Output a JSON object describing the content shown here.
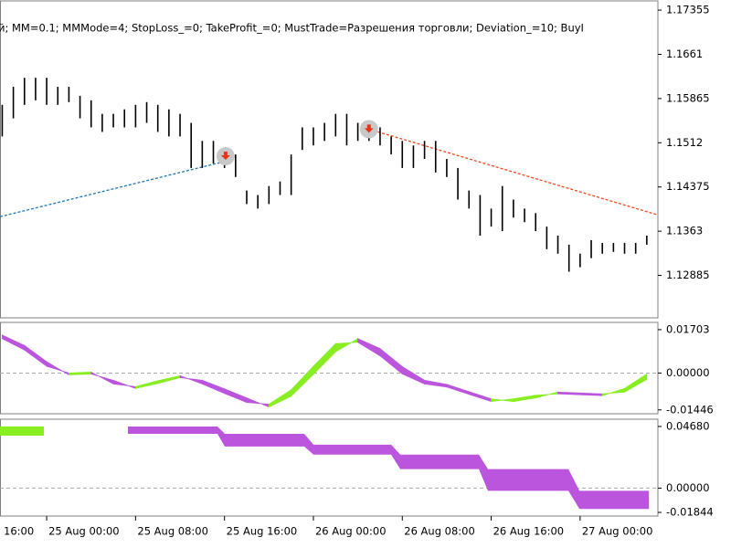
{
  "chart_data": [
    {
      "type": "ohlc",
      "title": "й; MM=0.1; MMMode=4; StopLoss_=0; TakeProfit_=0; MustTrade=Разрешения торговли; Deviation_=10; BuyI",
      "xlim": [
        3.8,
        63
      ],
      "ylim": [
        1.1217,
        1.1751
      ],
      "yticks": [
        1.17355,
        1.1661,
        1.15865,
        1.1512,
        1.14375,
        1.1363,
        1.12885
      ],
      "bar_color": "#000000",
      "x": [
        4,
        5,
        6,
        7,
        8,
        9,
        10,
        11,
        12,
        13,
        14,
        15,
        16,
        17,
        18,
        19,
        20,
        21,
        22,
        23,
        24,
        25,
        26,
        27,
        28,
        29,
        30,
        31,
        32,
        33,
        34,
        35,
        36,
        37,
        38,
        39,
        40,
        41,
        42,
        43,
        44,
        45,
        46,
        47,
        48,
        49,
        50,
        51,
        52,
        53,
        54,
        55,
        56,
        57,
        58,
        59,
        60,
        61,
        62
      ],
      "high": [
        1.15759,
        1.16063,
        1.16215,
        1.16215,
        1.16215,
        1.16063,
        1.16063,
        1.15911,
        1.15835,
        1.15607,
        1.15607,
        1.15683,
        1.15759,
        1.15805,
        1.15759,
        1.15683,
        1.15607,
        1.15455,
        1.15151,
        1.15151,
        1.14999,
        1.14923,
        1.14315,
        1.14239,
        1.14391,
        1.14467,
        1.14923,
        1.15379,
        1.15379,
        1.15455,
        1.15607,
        1.15607,
        1.15455,
        1.15379,
        1.15379,
        1.15227,
        1.15151,
        1.15075,
        1.15151,
        1.15151,
        1.14847,
        1.14695,
        1.14315,
        1.14239,
        1.14011,
        1.14391,
        1.14163,
        1.14011,
        1.13935,
        1.13707,
        1.13555,
        1.13403,
        1.13251,
        1.13479,
        1.13433,
        1.13433,
        1.13433,
        1.13433,
        1.13555
      ],
      "low": [
        1.15227,
        1.15531,
        1.15759,
        1.15835,
        1.15759,
        1.15759,
        1.15805,
        1.15531,
        1.15379,
        1.15303,
        1.15379,
        1.15379,
        1.15379,
        1.15455,
        1.15303,
        1.15227,
        1.15227,
        1.14695,
        1.14695,
        1.14771,
        1.14695,
        1.14543,
        1.14087,
        1.14011,
        1.14087,
        1.14239,
        1.14239,
        1.14999,
        1.15075,
        1.15151,
        1.15227,
        1.15075,
        1.15151,
        1.15151,
        1.15075,
        1.14923,
        1.14695,
        1.14695,
        1.14847,
        1.14619,
        1.14543,
        1.14163,
        1.14011,
        1.13555,
        1.13707,
        1.13631,
        1.13859,
        1.13783,
        1.13631,
        1.13327,
        1.13251,
        1.12947,
        1.13023,
        1.13175,
        1.13251,
        1.13281,
        1.13251,
        1.13251,
        1.13403
      ],
      "lines": [
        {
          "color": "#1f77b4",
          "x": [
            3.8,
            23.9
          ],
          "y": [
            1.13874,
            1.14799
          ]
        },
        {
          "color": "#e8471c",
          "x": [
            37,
            63
          ],
          "y": [
            1.15349,
            1.13904
          ]
        }
      ],
      "signals": {
        "color": "#e8331c",
        "x": [
          24.1,
          37
        ],
        "y": [
          1.14893,
          1.15349
        ]
      }
    },
    {
      "type": "oscillator",
      "xlim": [
        3.8,
        63
      ],
      "ylim": [
        -0.01597,
        0.01987
      ],
      "yticks": [
        0.01703,
        {
          "value": 0,
          "label": "0.00000"
        },
        -0.01446
      ],
      "up_color": "#88ee22",
      "down_color": "#bb55dd",
      "x": [
        4,
        6,
        8,
        10,
        12,
        14,
        16,
        18,
        20,
        22,
        24,
        26,
        28,
        30,
        32,
        34,
        36,
        38,
        40,
        42,
        44,
        46,
        48,
        50,
        52,
        54,
        56,
        58,
        60,
        62
      ],
      "main": [
        0.01349,
        0.00905,
        0.00266,
        0,
        0.00036,
        -0.00426,
        -0.00533,
        -0.00302,
        -0.00107,
        -0.00426,
        -0.00799,
        -0.01154,
        -0.01225,
        -0.00657,
        0.00266,
        0.01154,
        0.01207,
        0.00675,
        -0.00036,
        -0.00426,
        -0.0055,
        -0.00834,
        -0.01118,
        -0.01012,
        -0.0087,
        -0.00817,
        -0.00852,
        -0.00888,
        -0.00604,
        -0.00036
      ],
      "signal": [
        0.01491,
        0.01083,
        0.00444,
        -0.00071,
        -0.00036,
        -0.00284,
        -0.00604,
        -0.00408,
        -0.00178,
        -0.00284,
        -0.00621,
        -0.00976,
        -0.01331,
        -0.00905,
        -0.00053,
        0.00834,
        0.01349,
        0.00959,
        0.00249,
        -0.00284,
        -0.00444,
        -0.00728,
        -0.01012,
        -0.01118,
        -0.00976,
        -0.00746,
        -0.00781,
        -0.00817,
        -0.00746,
        -0.00249
      ]
    },
    {
      "type": "band",
      "xlim": [
        3.8,
        63
      ],
      "ylim": [
        -0.02119,
        0.0523
      ],
      "yticks": [
        {
          "value": 0.0468,
          "label": "0.04680"
        },
        {
          "value": 0,
          "label": "0.00000"
        },
        -0.01844
      ],
      "xticks": [
        {
          "value": 0,
          "label": "16:00"
        },
        {
          "value": 8,
          "label": "25 Aug 00:00"
        },
        {
          "value": 16,
          "label": "25 Aug 08:00"
        },
        {
          "value": 24,
          "label": "25 Aug 16:00"
        },
        {
          "value": 32,
          "label": "26 Aug 00:00"
        },
        {
          "value": 40,
          "label": "26 Aug 08:00"
        },
        {
          "value": 48,
          "label": "26 Aug 16:00"
        },
        {
          "value": 56,
          "label": "27 Aug 00:00"
        }
      ],
      "series": [
        {
          "color": "#88ee22",
          "x": [
            3.8,
            7.75
          ],
          "upper": [
            0.0468,
            0.0468
          ],
          "lower": [
            0.03985,
            0.03985
          ]
        },
        {
          "color": "#bb55dd",
          "x": [
            15.31,
            23.37,
            24.03,
            31.18,
            32.01,
            39.0,
            39.82,
            46.89,
            47.71,
            54.95,
            55.94,
            62.19
          ],
          "upper": [
            0.04672,
            0.04672,
            0.04122,
            0.04122,
            0.03298,
            0.03298,
            0.02542,
            0.02542,
            0.01443,
            0.01443,
            -0.00206,
            -0.00206
          ],
          "lower": [
            0.04122,
            0.04122,
            0.0316,
            0.0316,
            0.02542,
            0.02542,
            0.01443,
            0.01443,
            -0.00206,
            -0.00206,
            -0.0158,
            -0.0158
          ]
        }
      ]
    }
  ]
}
